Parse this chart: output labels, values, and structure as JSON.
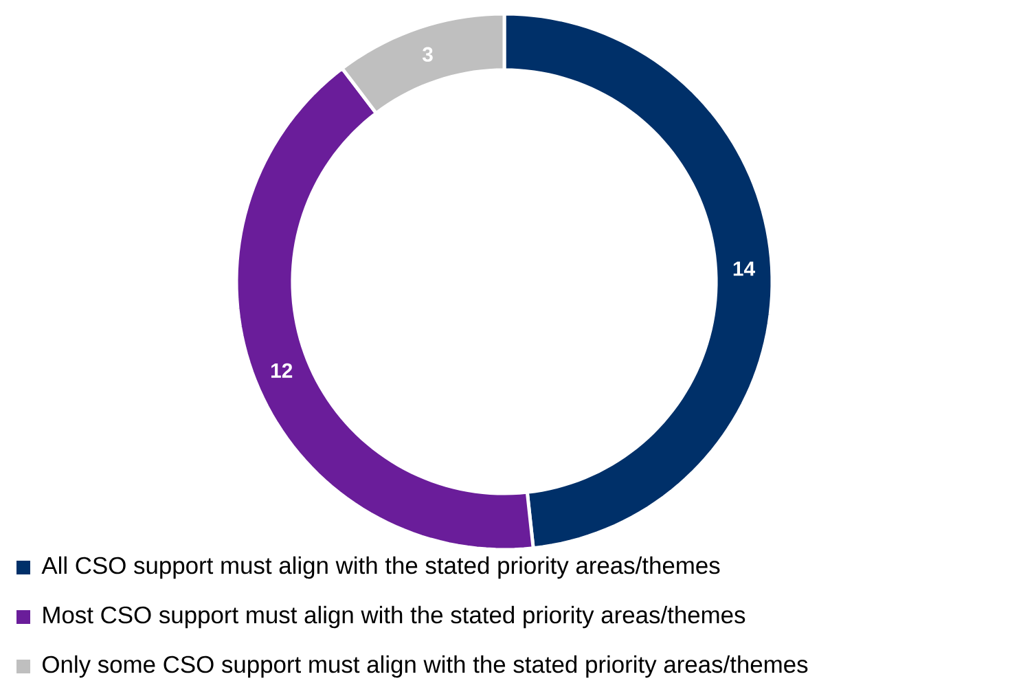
{
  "chart_data": {
    "type": "donut",
    "categories": [
      "All CSO support must align with the stated priority areas/themes",
      "Most CSO support must align with the stated priority areas/themes",
      "Only some CSO support must align with the stated priority areas/themes"
    ],
    "values": [
      14,
      12,
      3
    ],
    "colors": [
      "#003069",
      "#6a1d9a",
      "#bfbfbf"
    ],
    "data_labels": true,
    "legend": "bottom"
  }
}
